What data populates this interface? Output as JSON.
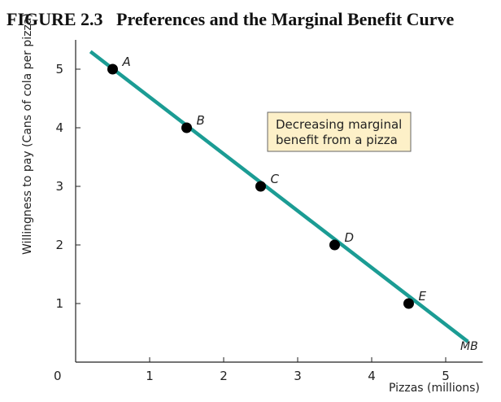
{
  "figure": {
    "title": "FIGURE 2.3   Preferences and the Marginal Benefit Curve"
  },
  "chart_data": {
    "type": "line",
    "xlabel": "Pizzas (millions)",
    "ylabel": "Willingness to pay (Cans of cola per pizza)",
    "xlim": [
      0,
      5.5
    ],
    "ylim": [
      0,
      5.5
    ],
    "x_ticks": [
      "0",
      "1",
      "2",
      "3",
      "4",
      "5"
    ],
    "y_ticks": [
      "1",
      "2",
      "3",
      "4",
      "5"
    ],
    "grid": false,
    "series": [
      {
        "name": "MB",
        "line": [
          [
            0.2,
            5.3
          ],
          [
            5.3,
            0.35
          ]
        ],
        "points": [
          {
            "label": "A",
            "x": 0.5,
            "y": 5
          },
          {
            "label": "B",
            "x": 1.5,
            "y": 4
          },
          {
            "label": "C",
            "x": 2.5,
            "y": 3
          },
          {
            "label": "D",
            "x": 3.5,
            "y": 2
          },
          {
            "label": "E",
            "x": 4.5,
            "y": 1
          }
        ]
      }
    ],
    "annotation": {
      "lines": [
        "Decreasing marginal",
        "benefit from a pizza"
      ]
    },
    "colors": {
      "curve": "#1b9c94",
      "annotation_fill": "#fdf0c8",
      "point": "#000000"
    }
  }
}
